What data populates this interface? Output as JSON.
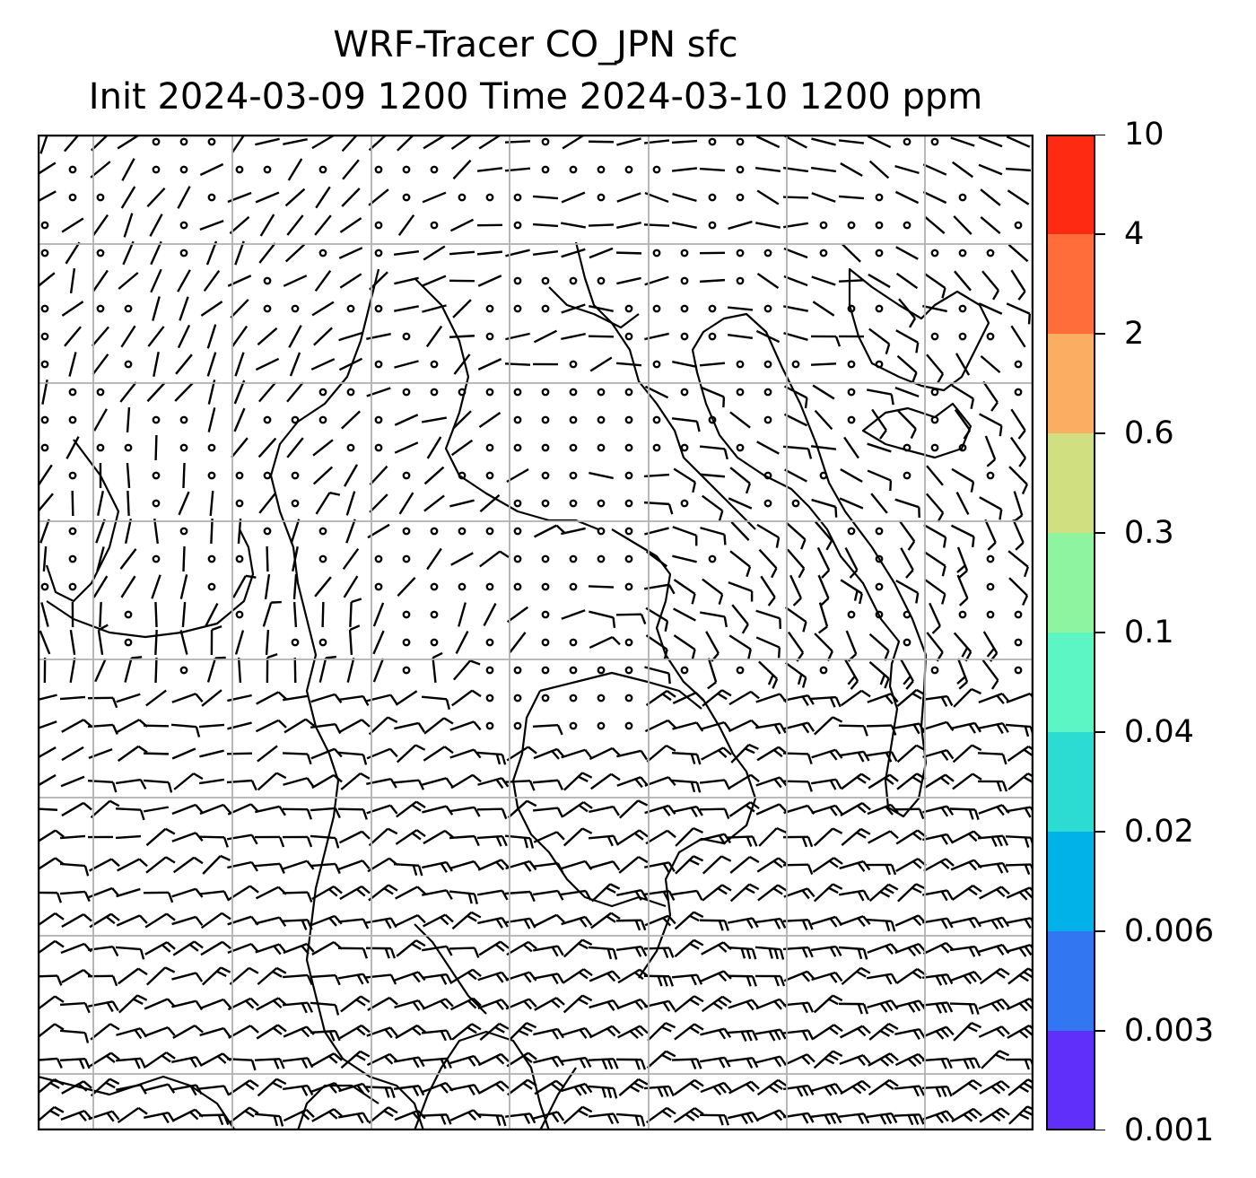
{
  "title": {
    "line1": "WRF-Tracer CO_JPN sfc",
    "line2": "Init 2024-03-09 1200 Time 2024-03-10 1200 ppm"
  },
  "map": {
    "graticule": {
      "columns": 7,
      "rows": 7,
      "color": "#b0b0b0"
    },
    "overlay": "wind barbs over coastlines"
  },
  "colorbar": {
    "levels": [
      "10",
      "4",
      "2",
      "0.6",
      "0.3",
      "0.1",
      "0.04",
      "0.02",
      "0.006",
      "0.003",
      "0.001"
    ],
    "colors": [
      "#ff2a12",
      "#ff6d3a",
      "#fbae62",
      "#d0e080",
      "#8ef4a0",
      "#5cf6c4",
      "#2cdcd2",
      "#00b2e8",
      "#3276f2",
      "#6030fa"
    ]
  }
}
